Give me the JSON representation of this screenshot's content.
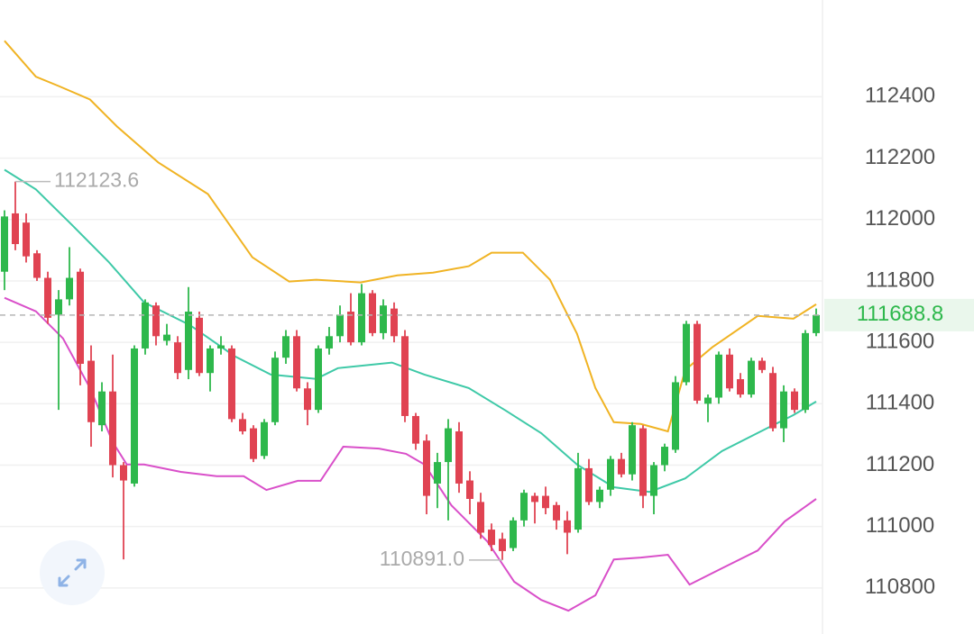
{
  "chart_data": {
    "type": "candlestick",
    "categories": [
      null,
      null,
      null,
      null,
      null,
      null,
      null,
      null,
      null,
      null,
      null,
      null,
      null,
      null,
      null,
      null,
      null,
      null,
      null,
      null,
      null,
      null,
      null,
      null,
      null,
      null,
      null,
      null,
      null,
      null,
      null,
      null,
      null,
      null,
      null,
      null,
      null,
      null,
      null,
      null,
      null,
      null,
      null,
      null,
      null,
      null,
      null,
      null,
      null,
      null,
      null,
      null,
      null,
      null,
      null,
      null,
      null,
      null,
      null,
      null,
      null,
      null,
      null,
      null,
      null,
      null,
      null,
      null,
      null,
      null,
      null,
      null,
      null,
      null,
      null,
      null
    ],
    "open": [
      111830,
      112020,
      111990,
      111890,
      111810,
      111690,
      111740,
      111830,
      111540,
      111330,
      111440,
      111200,
      111140,
      111580,
      111720,
      111605,
      111600,
      111510,
      111680,
      111500,
      111580,
      111580,
      111350,
      111320,
      111230,
      111340,
      111550,
      111620,
      111450,
      111380,
      111580,
      111620,
      111700,
      111600,
      111760,
      111630,
      111710,
      111620,
      111360,
      111280,
      111140,
      111210,
      111310,
      111150,
      111080,
      110990,
      110960,
      110930,
      111020,
      111100,
      111100,
      111070,
      111020,
      110990,
      111190,
      111080,
      111120,
      111220,
      111170,
      111320,
      111100,
      111200,
      111250,
      111470,
      111660,
      111400,
      111420,
      111560,
      111480,
      111430,
      111540,
      111500,
      111320,
      111440,
      111380,
      111630
    ],
    "high": [
      112030,
      112123.6,
      112020,
      111900,
      111830,
      111770,
      111910,
      111840,
      111590,
      111470,
      111560,
      111210,
      111590,
      111740,
      111730,
      111660,
      111620,
      111780,
      111700,
      111590,
      111620,
      111590,
      111370,
      111330,
      111350,
      111570,
      111640,
      111640,
      111470,
      111590,
      111650,
      111720,
      111760,
      111790,
      111770,
      111740,
      111730,
      111640,
      111370,
      111300,
      111240,
      111350,
      111340,
      111180,
      111110,
      111010,
      110980,
      111030,
      111120,
      111110,
      111130,
      111080,
      111050,
      111240,
      111220,
      111130,
      111230,
      111240,
      111340,
      111330,
      111210,
      111270,
      111490,
      111670,
      111670,
      111430,
      111570,
      111580,
      111500,
      111550,
      111550,
      111520,
      111460,
      111450,
      111640,
      111710
    ],
    "low": [
      111770,
      111900,
      111860,
      111800,
      111660,
      111380,
      111720,
      111460,
      111260,
      111310,
      111160,
      110893,
      111130,
      111560,
      111590,
      111590,
      111480,
      111480,
      111490,
      111440,
      111560,
      111340,
      111300,
      111210,
      111220,
      111330,
      111530,
      111440,
      111330,
      111370,
      111560,
      111600,
      111590,
      111590,
      111620,
      111610,
      111600,
      111340,
      111250,
      111040,
      111060,
      111020,
      111110,
      111040,
      110960,
      110920,
      110891.0,
      110920,
      111000,
      111010,
      111040,
      110990,
      110910,
      110980,
      111070,
      111060,
      111100,
      111160,
      111150,
      111060,
      111040,
      111180,
      111240,
      111460,
      111400,
      111340,
      111400,
      111440,
      111420,
      111420,
      111500,
      111310,
      111275,
      111370,
      111370,
      111620
    ],
    "close": [
      112010,
      111920,
      111880,
      111810,
      111680,
      111740,
      111810,
      111530,
      111340,
      111440,
      111200,
      111150,
      111580,
      111730,
      111620,
      111625,
      111500,
      111700,
      111500,
      111580,
      111590,
      111350,
      111310,
      111220,
      111340,
      111550,
      111620,
      111450,
      111380,
      111580,
      111620,
      111690,
      111600,
      111760,
      111630,
      111720,
      111620,
      111360,
      111270,
      111100,
      111210,
      111320,
      111140,
      111090,
      110980,
      110940,
      110920,
      111020,
      111110,
      111080,
      111060,
      111020,
      110980,
      111190,
      111080,
      111120,
      111220,
      111170,
      111330,
      111100,
      111200,
      111260,
      111470,
      111660,
      111410,
      111420,
      111560,
      111450,
      111430,
      111540,
      111510,
      111320,
      111440,
      111380,
      111630,
      111688.8
    ],
    "up_color": "#2eb84c",
    "down_color": "#e04352",
    "bands": [
      {
        "color": "#f0b323",
        "x": [
          0,
          2.9,
          5,
          7.9,
          10.4,
          14.2,
          18.8,
          22.9,
          26.3,
          28.8,
          32.9,
          36.3,
          39.6,
          42.9,
          45,
          47.9,
          50.4,
          52.9,
          54.6,
          56.3,
          58.8,
          61.3,
          62.9,
          65.4,
          69.6,
          72.9,
          75
        ],
        "values": [
          112582,
          112465,
          112435,
          112391,
          112303,
          112186,
          112083,
          111877,
          111798,
          111804,
          111795,
          111818,
          111827,
          111848,
          111892,
          111892,
          111804,
          111628,
          111451,
          111340,
          111334,
          111310,
          111510,
          111584,
          111686,
          111677,
          111724
        ]
      },
      {
        "color": "#3ec9a7",
        "x": [
          0,
          2.9,
          6.3,
          9.6,
          12.9,
          17.1,
          21.3,
          24.6,
          28.8,
          30.8,
          35.8,
          38.8,
          42.9,
          46.3,
          49.6,
          52.9,
          56.3,
          59.6,
          62.9,
          66.3,
          70.4,
          72.9,
          75
        ],
        "values": [
          112162,
          112098,
          111980,
          111863,
          111730,
          111657,
          111554,
          111495,
          111481,
          111516,
          111534,
          111495,
          111451,
          111378,
          111304,
          111202,
          111128,
          111113,
          111157,
          111246,
          111319,
          111363,
          111407
        ]
      },
      {
        "color": "#d94fc9",
        "x": [
          0,
          2.9,
          5.4,
          7.9,
          10,
          11.3,
          12.9,
          16.3,
          19.6,
          22.1,
          24.2,
          27.1,
          29.2,
          31.3,
          34.6,
          37.1,
          38.8,
          41.3,
          44.6,
          47.1,
          49.6,
          52.1,
          54.6,
          56.3,
          58.8,
          61.3,
          63.3,
          66.3,
          69.6,
          72.1,
          75
        ],
        "values": [
          111745,
          111701,
          111613,
          111451,
          111275,
          111202,
          111202,
          111178,
          111164,
          111164,
          111119,
          111149,
          111149,
          111260,
          111254,
          111237,
          111202,
          111069,
          110952,
          110820,
          110761,
          110726,
          110776,
          110893,
          110899,
          110908,
          110811,
          110864,
          110922,
          111017,
          111090
        ]
      }
    ],
    "high_label": {
      "value": 112123.6,
      "label": "112123.6"
    },
    "low_label": {
      "value": 110891.0,
      "label": "110891.0"
    },
    "last_price": {
      "value": 111688.8,
      "label": "111688.8"
    },
    "ylim": [
      110650,
      112715
    ],
    "yticks": [
      110800,
      111000,
      111200,
      111400,
      111600,
      111800,
      112000,
      112200,
      112400
    ],
    "grid": true
  }
}
